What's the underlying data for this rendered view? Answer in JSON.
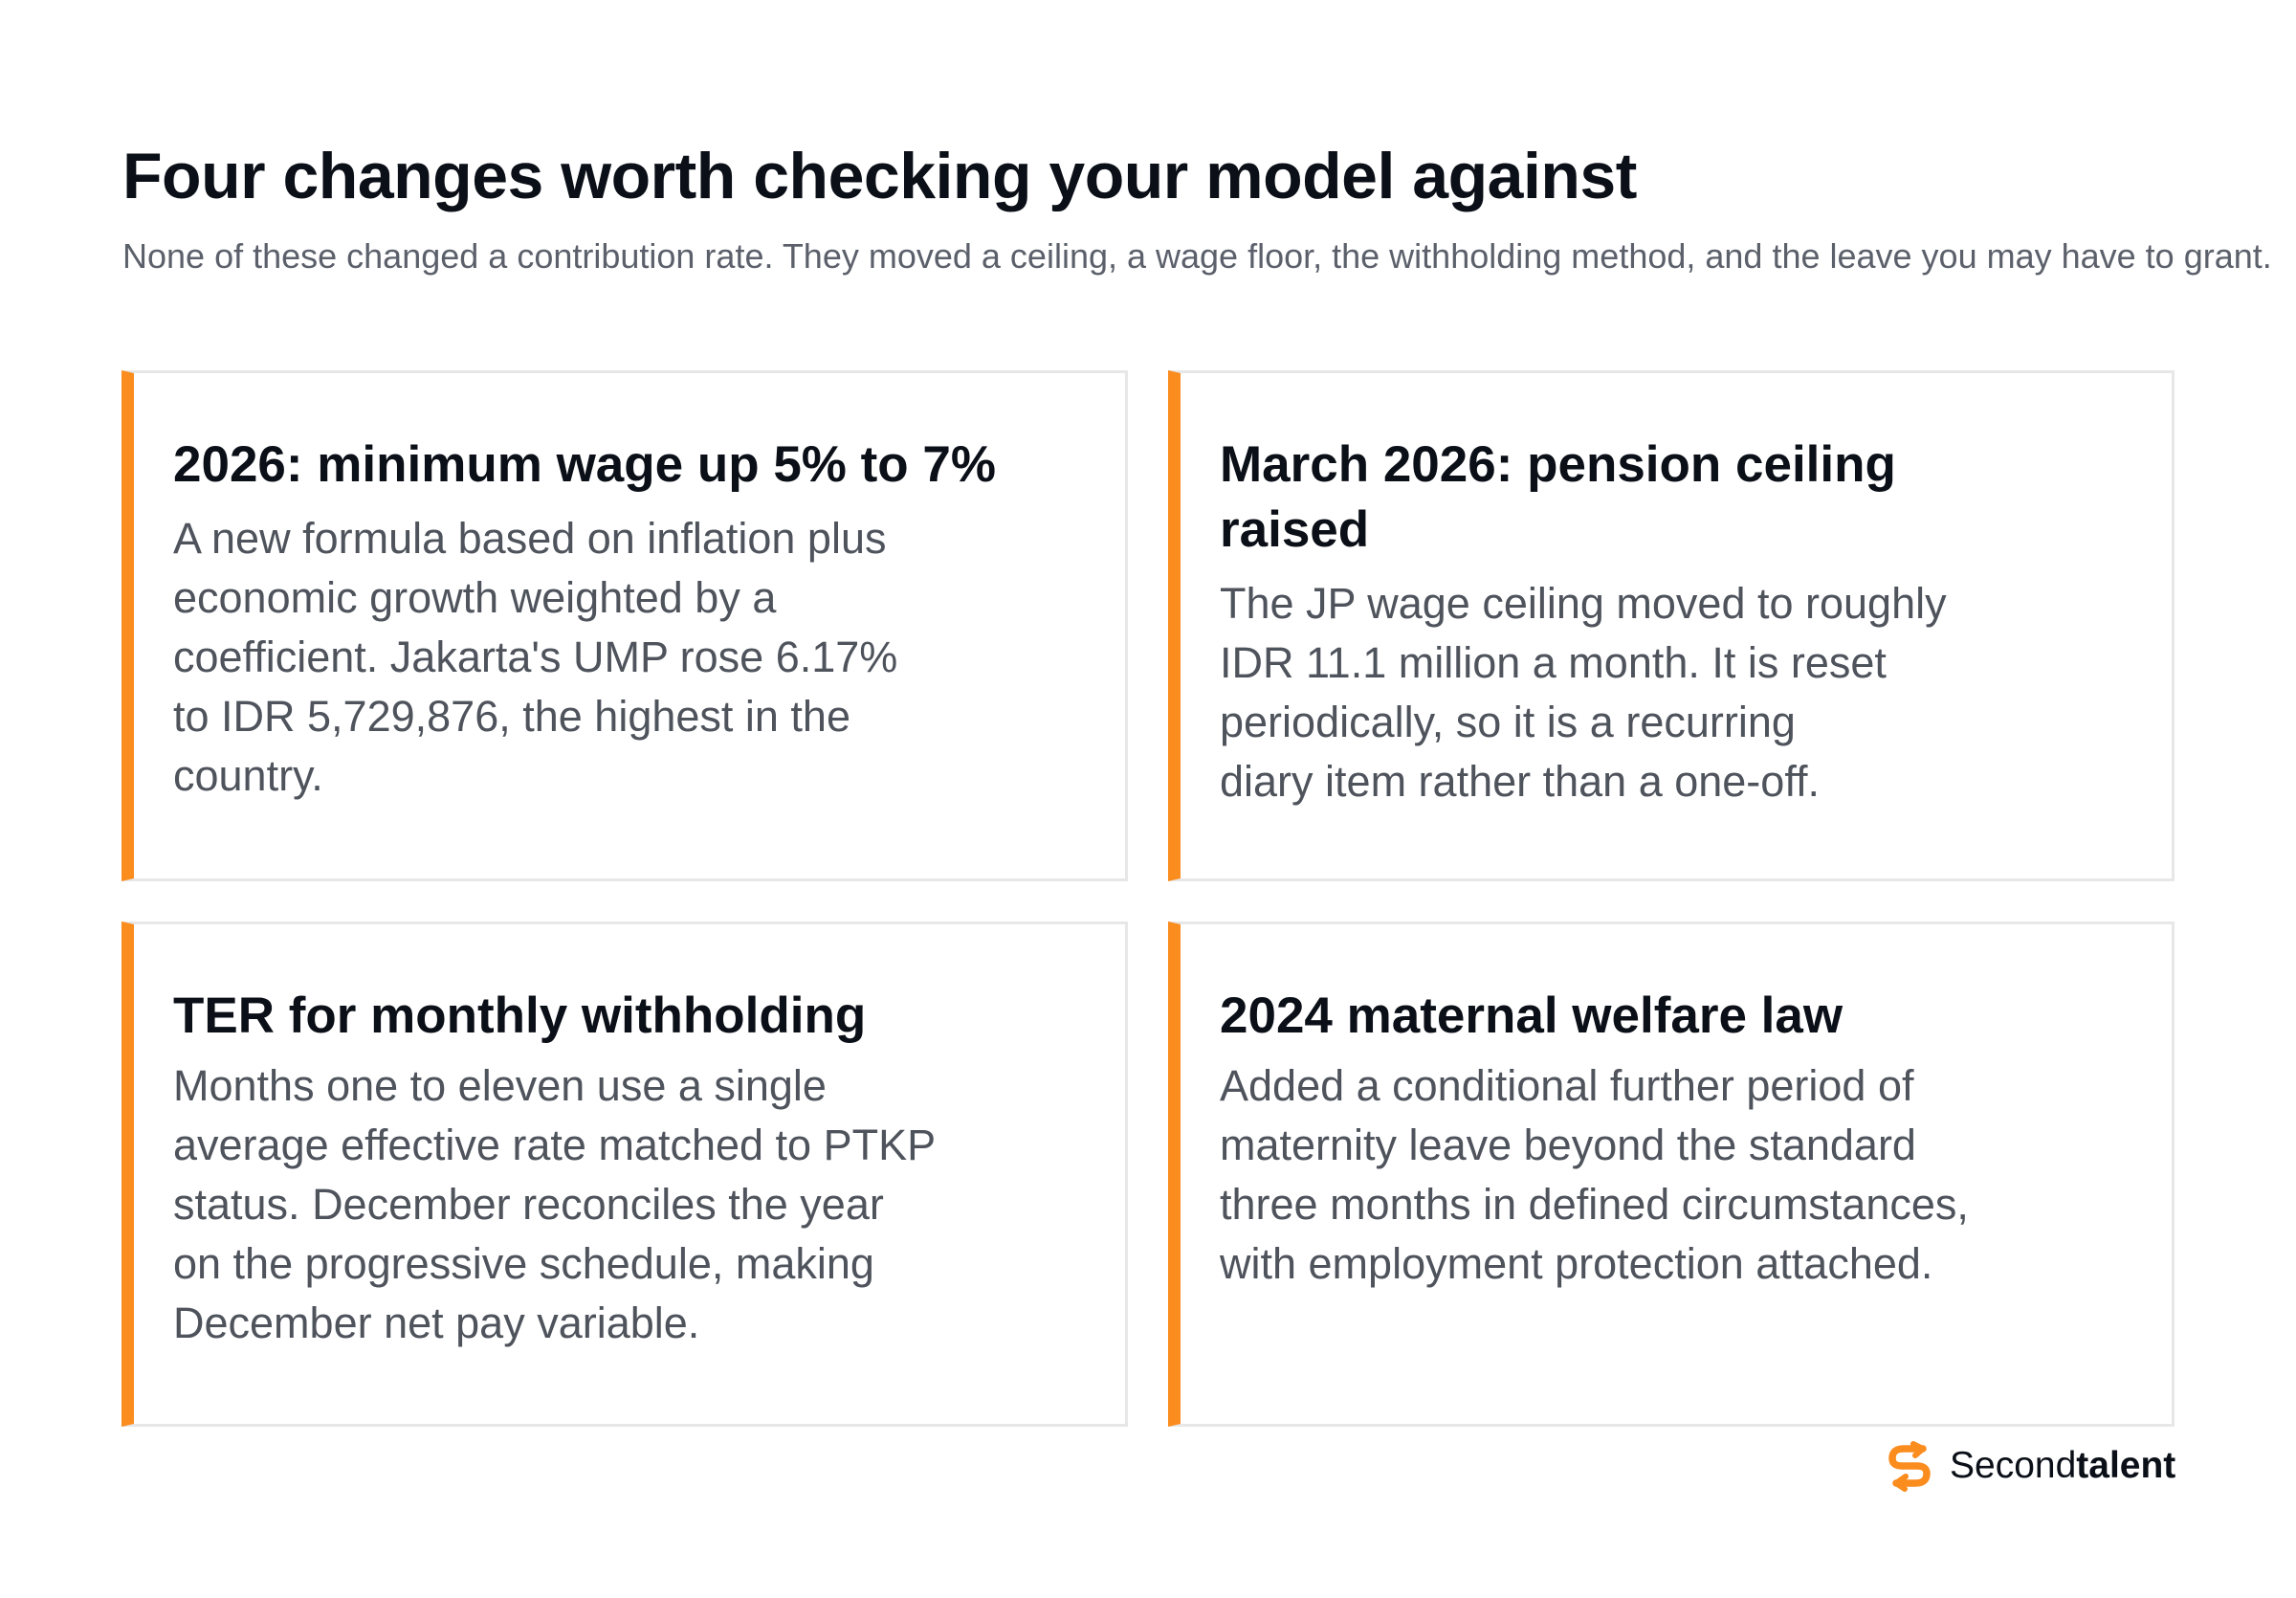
{
  "header": {
    "title": "Four changes worth checking your model against",
    "subtitle": "None of these changed a contribution rate. They moved a ceiling, a wage floor, the withholding method, and the leave you may have to grant."
  },
  "cards": [
    {
      "title": "2026: minimum wage up 5% to 7%",
      "body": "A new formula based on inflation plus\neconomic growth weighted by a\ncoefficient. Jakarta's UMP rose 6.17%\nto IDR 5,729,876, the highest in the\ncountry."
    },
    {
      "title": "March 2026: pension ceiling raised",
      "body": "The JP wage ceiling moved to roughly\nIDR 11.1 million a month. It is reset\nperiodically, so it is a recurring\ndiary item rather than a one-off."
    },
    {
      "title": "TER for monthly withholding",
      "body": "Months one to eleven use a single\naverage effective rate matched to PTKP\nstatus. December reconciles the year\non the progressive schedule, making\nDecember net pay variable."
    },
    {
      "title": "2024 maternal welfare law",
      "body": "Added a conditional further period of\nmaternity leave beyond the standard\nthree months in defined circumstances,\nwith employment protection attached."
    }
  ],
  "brand": {
    "name_regular": "Second",
    "name_bold": "talent",
    "icon": "secondtalent-logo-icon"
  },
  "colors": {
    "accent": "#fb8c1e",
    "title_text": "#0b0f17",
    "body_text": "#4e535c",
    "subtitle_text": "#5b606b",
    "card_border": "#e7e7e7"
  }
}
